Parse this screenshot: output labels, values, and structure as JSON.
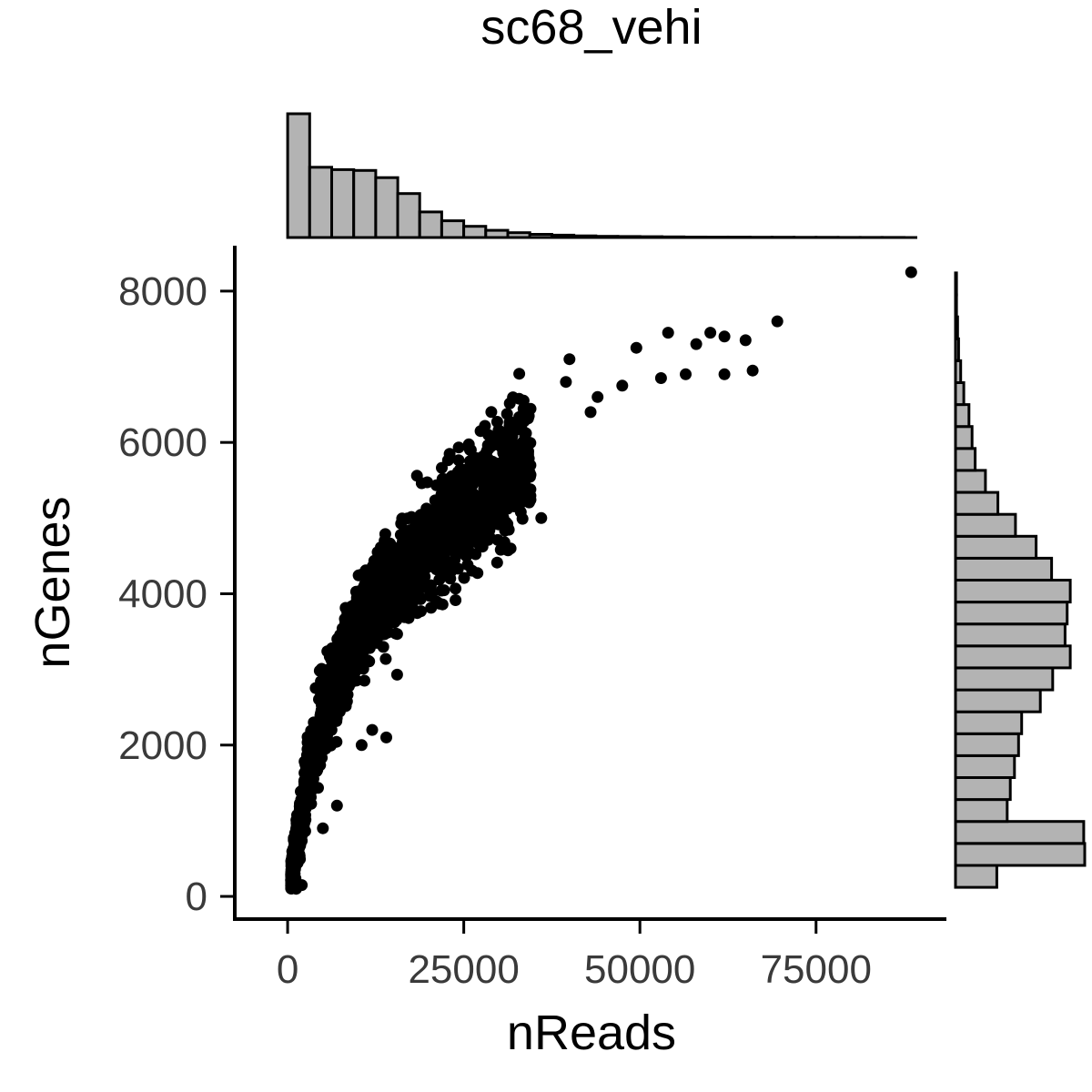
{
  "chart_data": {
    "type": "scatter",
    "title": "sc68_vehi",
    "xlabel": "nReads",
    "ylabel": "nGenes",
    "xlim": [
      -7500,
      93500
    ],
    "ylim": [
      -300,
      8600
    ],
    "x_ticks": [
      0,
      25000,
      50000,
      75000
    ],
    "x_tick_labels": [
      "0",
      "25000",
      "50000",
      "75000"
    ],
    "y_ticks": [
      0,
      2000,
      4000,
      6000,
      8000
    ],
    "y_tick_labels": [
      "0",
      "2000",
      "4000",
      "6000",
      "8000"
    ],
    "grid": false,
    "legend": "none",
    "colors": {
      "point": "#000000",
      "histogram_fill": "#b3b3b3",
      "histogram_stroke": "#000000"
    },
    "scatter_trend": {
      "description_points": [
        [
          500,
          200
        ],
        [
          1000,
          600
        ],
        [
          2000,
          1100
        ],
        [
          3000,
          1700
        ],
        [
          5000,
          2500
        ],
        [
          8000,
          3200
        ],
        [
          12000,
          3900
        ],
        [
          16000,
          4300
        ],
        [
          20000,
          4700
        ],
        [
          25000,
          5200
        ],
        [
          30000,
          5700
        ],
        [
          35000,
          6000
        ],
        [
          40000,
          6400
        ],
        [
          45000,
          6700
        ],
        [
          50000,
          7000
        ]
      ]
    },
    "outlier_points": [
      [
        88500,
        8250
      ],
      [
        69500,
        7600
      ],
      [
        54000,
        7450
      ],
      [
        58000,
        7300
      ],
      [
        60000,
        7450
      ],
      [
        62000,
        7400
      ],
      [
        65000,
        7350
      ],
      [
        62000,
        6900
      ],
      [
        66000,
        6950
      ],
      [
        56500,
        6900
      ],
      [
        53000,
        6850
      ],
      [
        49500,
        7250
      ],
      [
        47500,
        6750
      ],
      [
        44000,
        6600
      ],
      [
        40000,
        7100
      ],
      [
        36000,
        5000
      ],
      [
        39500,
        6800
      ],
      [
        43000,
        6400
      ],
      [
        28500,
        6100
      ],
      [
        26000,
        5900
      ],
      [
        23000,
        5850
      ],
      [
        14000,
        2100
      ],
      [
        10500,
        2000
      ],
      [
        12000,
        2200
      ],
      [
        7000,
        1200
      ],
      [
        5000,
        900
      ],
      [
        1200,
        100
      ],
      [
        2000,
        150
      ]
    ],
    "x_histogram": {
      "bin_width": 3125,
      "bin_start": 0,
      "counts": [
        0.155,
        0.088,
        0.085,
        0.084,
        0.075,
        0.055,
        0.032,
        0.021,
        0.014,
        0.009,
        0.006,
        0.004,
        0.003,
        0.002,
        0.0015,
        0.0012,
        0.001,
        0.0008,
        0.0006,
        0.0005,
        0.0004,
        0.0003,
        0.0003,
        0.0002,
        0.0002,
        0.0001,
        0.0001,
        0.0001
      ]
    },
    "y_histogram": {
      "bin_width": 290,
      "bin_start": 120,
      "counts": [
        0.04,
        0.125,
        0.124,
        0.05,
        0.053,
        0.057,
        0.061,
        0.064,
        0.082,
        0.094,
        0.111,
        0.106,
        0.108,
        0.111,
        0.093,
        0.078,
        0.058,
        0.041,
        0.029,
        0.019,
        0.016,
        0.013,
        0.008,
        0.005,
        0.003,
        0.002,
        0.001,
        0.001
      ]
    }
  }
}
